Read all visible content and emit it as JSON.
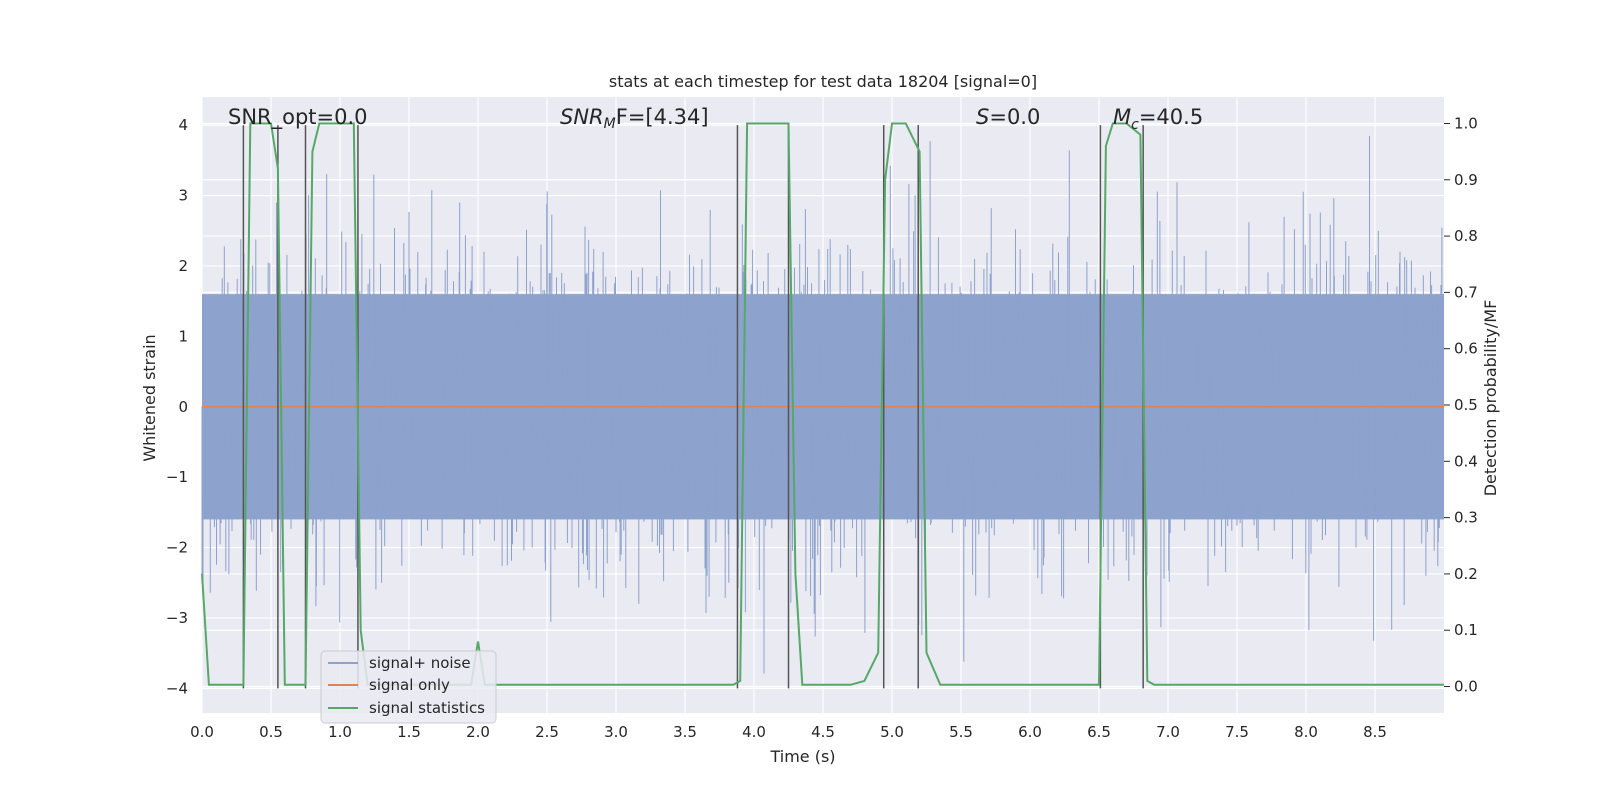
{
  "chart_data": {
    "type": "line",
    "title": "stats at each timestep for test data 18204 [signal=0]",
    "xlabel": "Time (s)",
    "ylabel": "Whitened strain",
    "y2label": "Detection probability/MF",
    "xlim": [
      0,
      9.0
    ],
    "ylim": [
      -4.35,
      4.4
    ],
    "y2lim": [
      -0.047,
      1.047
    ],
    "x_ticks": [
      "0.0",
      "0.5",
      "1.0",
      "1.5",
      "2.0",
      "2.5",
      "3.0",
      "3.5",
      "4.0",
      "4.5",
      "5.0",
      "5.5",
      "6.0",
      "6.5",
      "7.0",
      "7.5",
      "8.0",
      "8.5"
    ],
    "y_ticks": [
      "4",
      "3",
      "2",
      "1",
      "0",
      "−1",
      "−2",
      "−3",
      "−4"
    ],
    "y2_ticks": [
      "1.0",
      "0.9",
      "0.8",
      "0.7",
      "0.6",
      "0.5",
      "0.4",
      "0.3",
      "0.2",
      "0.1",
      "0.0"
    ],
    "grid": true,
    "legend_position": "lower-left",
    "annotations": {
      "snr_opt": "SNR_opt=0.0",
      "snr_mf_a": "SNR",
      "snr_mf_b": "M",
      "snr_mf_c": "F=[4.34]",
      "s_a": "S",
      "s_b": "=0.0",
      "mc_a": "M",
      "mc_b": "c",
      "mc_c": "=40.5"
    },
    "series": [
      {
        "name": "signal+ noise",
        "color": "#8da2cc",
        "noise_amplitude_std": 1.0,
        "typical_envelope": [
          -2.2,
          2.3
        ],
        "extremes": [
          -4.0,
          3.85
        ]
      },
      {
        "name": "signal only",
        "color": "#dd8452",
        "values_constant": 0
      },
      {
        "name": "signal statistics",
        "color": "#55a868",
        "axis": "right",
        "x": [
          0,
          0.05,
          0.3,
          0.35,
          0.4,
          0.5,
          0.55,
          0.6,
          0.75,
          0.8,
          0.85,
          0.9,
          1.1,
          1.15,
          1.2,
          1.95,
          2.0,
          2.05,
          2.1,
          3.85,
          3.9,
          3.95,
          4.25,
          4.3,
          4.35,
          4.7,
          4.8,
          4.9,
          4.95,
          5.0,
          5.05,
          5.1,
          5.2,
          5.25,
          5.35,
          6.5,
          6.55,
          6.6,
          6.7,
          6.8,
          6.85,
          6.9,
          7.5,
          8.0,
          9.0
        ],
        "y": [
          0.2,
          0.003,
          0.003,
          1.0,
          1.0,
          1.0,
          0.92,
          0.003,
          0.003,
          0.95,
          1.0,
          1.0,
          1.0,
          0.1,
          0.003,
          0.003,
          0.08,
          0.003,
          0.003,
          0.003,
          0.01,
          1.0,
          1.0,
          0.2,
          0.003,
          0.003,
          0.01,
          0.06,
          0.9,
          1.0,
          1.0,
          1.0,
          0.95,
          0.06,
          0.003,
          0.003,
          0.96,
          1.0,
          1.0,
          0.98,
          0.01,
          0.003,
          0.003,
          0.003,
          0.003
        ]
      }
    ],
    "vertical_markers": [
      0.3,
      0.55,
      0.75,
      1.13,
      3.88,
      4.25,
      4.94,
      5.19,
      6.51,
      6.82
    ]
  }
}
